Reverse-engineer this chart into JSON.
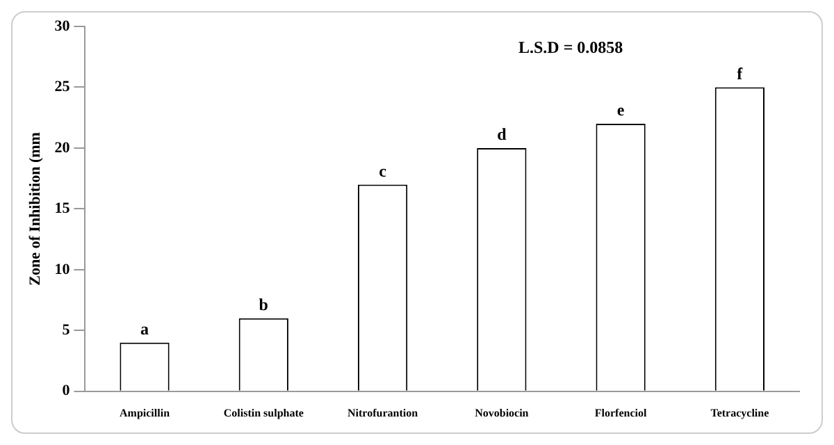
{
  "chart_data": {
    "type": "bar",
    "ylabel": "Zone of Inhibition (mm",
    "categories": [
      "Ampicillin",
      "Colistin sulphate",
      "Nitrofurantion",
      "Novobiocin",
      "Florfenciol",
      "Tetracycline"
    ],
    "values": [
      4,
      6,
      17,
      20,
      22,
      25
    ],
    "value_labels": [
      "a",
      "b",
      "c",
      "d",
      "e",
      "f"
    ],
    "color": "#ffffff",
    "ylim": [
      0,
      30
    ],
    "yticks": [
      0,
      5,
      10,
      15,
      20,
      25,
      30
    ],
    "grid": false,
    "legend": false,
    "annotations": [
      "L.S.D = 0.0858"
    ]
  }
}
